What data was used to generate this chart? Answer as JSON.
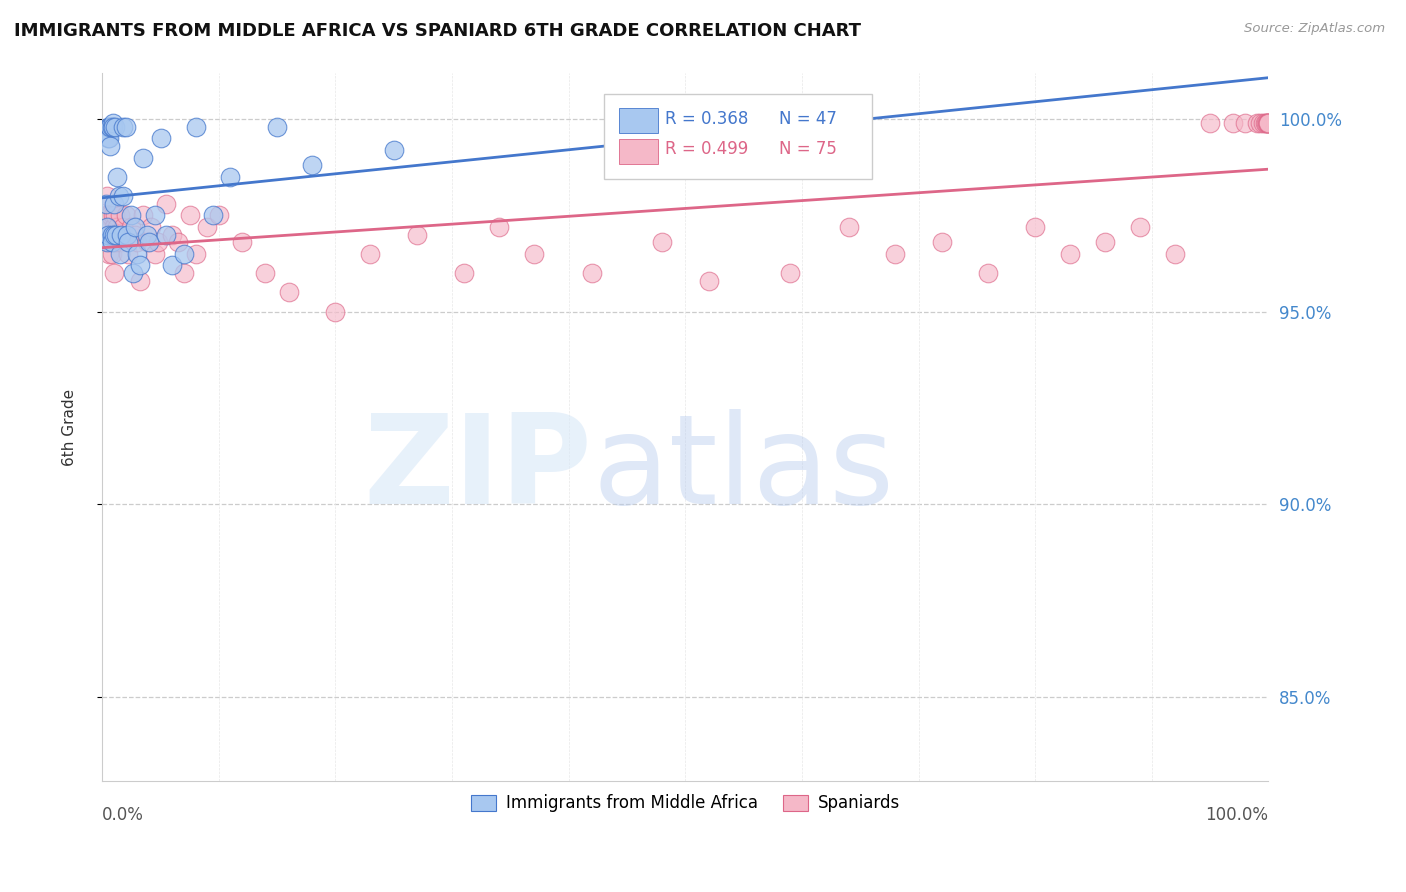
{
  "title": "IMMIGRANTS FROM MIDDLE AFRICA VS SPANIARD 6TH GRADE CORRELATION CHART",
  "source": "Source: ZipAtlas.com",
  "ylabel": "6th Grade",
  "x_range": [
    0.0,
    1.0
  ],
  "y_range": [
    0.828,
    1.012
  ],
  "y_ticks": [
    0.85,
    0.9,
    0.95,
    1.0
  ],
  "y_tick_labels": [
    "85.0%",
    "90.0%",
    "95.0%",
    "100.0%"
  ],
  "blue_color": "#a8c8f0",
  "pink_color": "#f5b8c8",
  "blue_line_color": "#4477cc",
  "pink_line_color": "#dd6688",
  "blue_x": [
    0.003,
    0.004,
    0.004,
    0.005,
    0.005,
    0.005,
    0.006,
    0.006,
    0.007,
    0.007,
    0.008,
    0.008,
    0.008,
    0.009,
    0.009,
    0.01,
    0.01,
    0.011,
    0.012,
    0.013,
    0.014,
    0.015,
    0.016,
    0.018,
    0.018,
    0.02,
    0.021,
    0.022,
    0.025,
    0.026,
    0.028,
    0.03,
    0.032,
    0.035,
    0.038,
    0.04,
    0.045,
    0.05,
    0.055,
    0.06,
    0.07,
    0.08,
    0.095,
    0.11,
    0.15,
    0.18,
    0.25
  ],
  "blue_y": [
    0.978,
    0.972,
    0.968,
    0.998,
    0.995,
    0.97,
    0.998,
    0.995,
    0.998,
    0.993,
    0.998,
    0.97,
    0.968,
    0.999,
    0.998,
    0.978,
    0.97,
    0.998,
    0.97,
    0.985,
    0.98,
    0.965,
    0.97,
    0.998,
    0.98,
    0.998,
    0.97,
    0.968,
    0.975,
    0.96,
    0.972,
    0.965,
    0.962,
    0.99,
    0.97,
    0.968,
    0.975,
    0.995,
    0.97,
    0.962,
    0.965,
    0.998,
    0.975,
    0.985,
    0.998,
    0.988,
    0.992
  ],
  "pink_x": [
    0.003,
    0.004,
    0.004,
    0.005,
    0.005,
    0.006,
    0.006,
    0.007,
    0.007,
    0.008,
    0.008,
    0.009,
    0.009,
    0.01,
    0.01,
    0.011,
    0.012,
    0.013,
    0.015,
    0.016,
    0.018,
    0.02,
    0.022,
    0.025,
    0.028,
    0.03,
    0.032,
    0.035,
    0.038,
    0.042,
    0.045,
    0.048,
    0.055,
    0.06,
    0.065,
    0.07,
    0.075,
    0.08,
    0.09,
    0.1,
    0.12,
    0.14,
    0.16,
    0.2,
    0.23,
    0.27,
    0.31,
    0.34,
    0.37,
    0.42,
    0.48,
    0.52,
    0.59,
    0.64,
    0.68,
    0.72,
    0.76,
    0.8,
    0.83,
    0.86,
    0.89,
    0.92,
    0.95,
    0.97,
    0.98,
    0.99,
    0.993,
    0.995,
    0.997,
    0.998,
    0.999,
    1.0,
    1.0,
    1.0,
    1.0
  ],
  "pink_y": [
    0.975,
    0.98,
    0.97,
    0.968,
    0.975,
    0.972,
    0.965,
    0.968,
    0.975,
    0.97,
    0.965,
    0.975,
    0.968,
    0.972,
    0.96,
    0.975,
    0.968,
    0.972,
    0.975,
    0.968,
    0.972,
    0.975,
    0.965,
    0.972,
    0.97,
    0.968,
    0.958,
    0.975,
    0.968,
    0.972,
    0.965,
    0.968,
    0.978,
    0.97,
    0.968,
    0.96,
    0.975,
    0.965,
    0.972,
    0.975,
    0.968,
    0.96,
    0.955,
    0.95,
    0.965,
    0.97,
    0.96,
    0.972,
    0.965,
    0.96,
    0.968,
    0.958,
    0.96,
    0.972,
    0.965,
    0.968,
    0.96,
    0.972,
    0.965,
    0.968,
    0.972,
    0.965,
    0.999,
    0.999,
    0.999,
    0.999,
    0.999,
    0.999,
    0.999,
    0.999,
    0.999,
    0.999,
    0.999,
    0.999,
    0.999
  ]
}
